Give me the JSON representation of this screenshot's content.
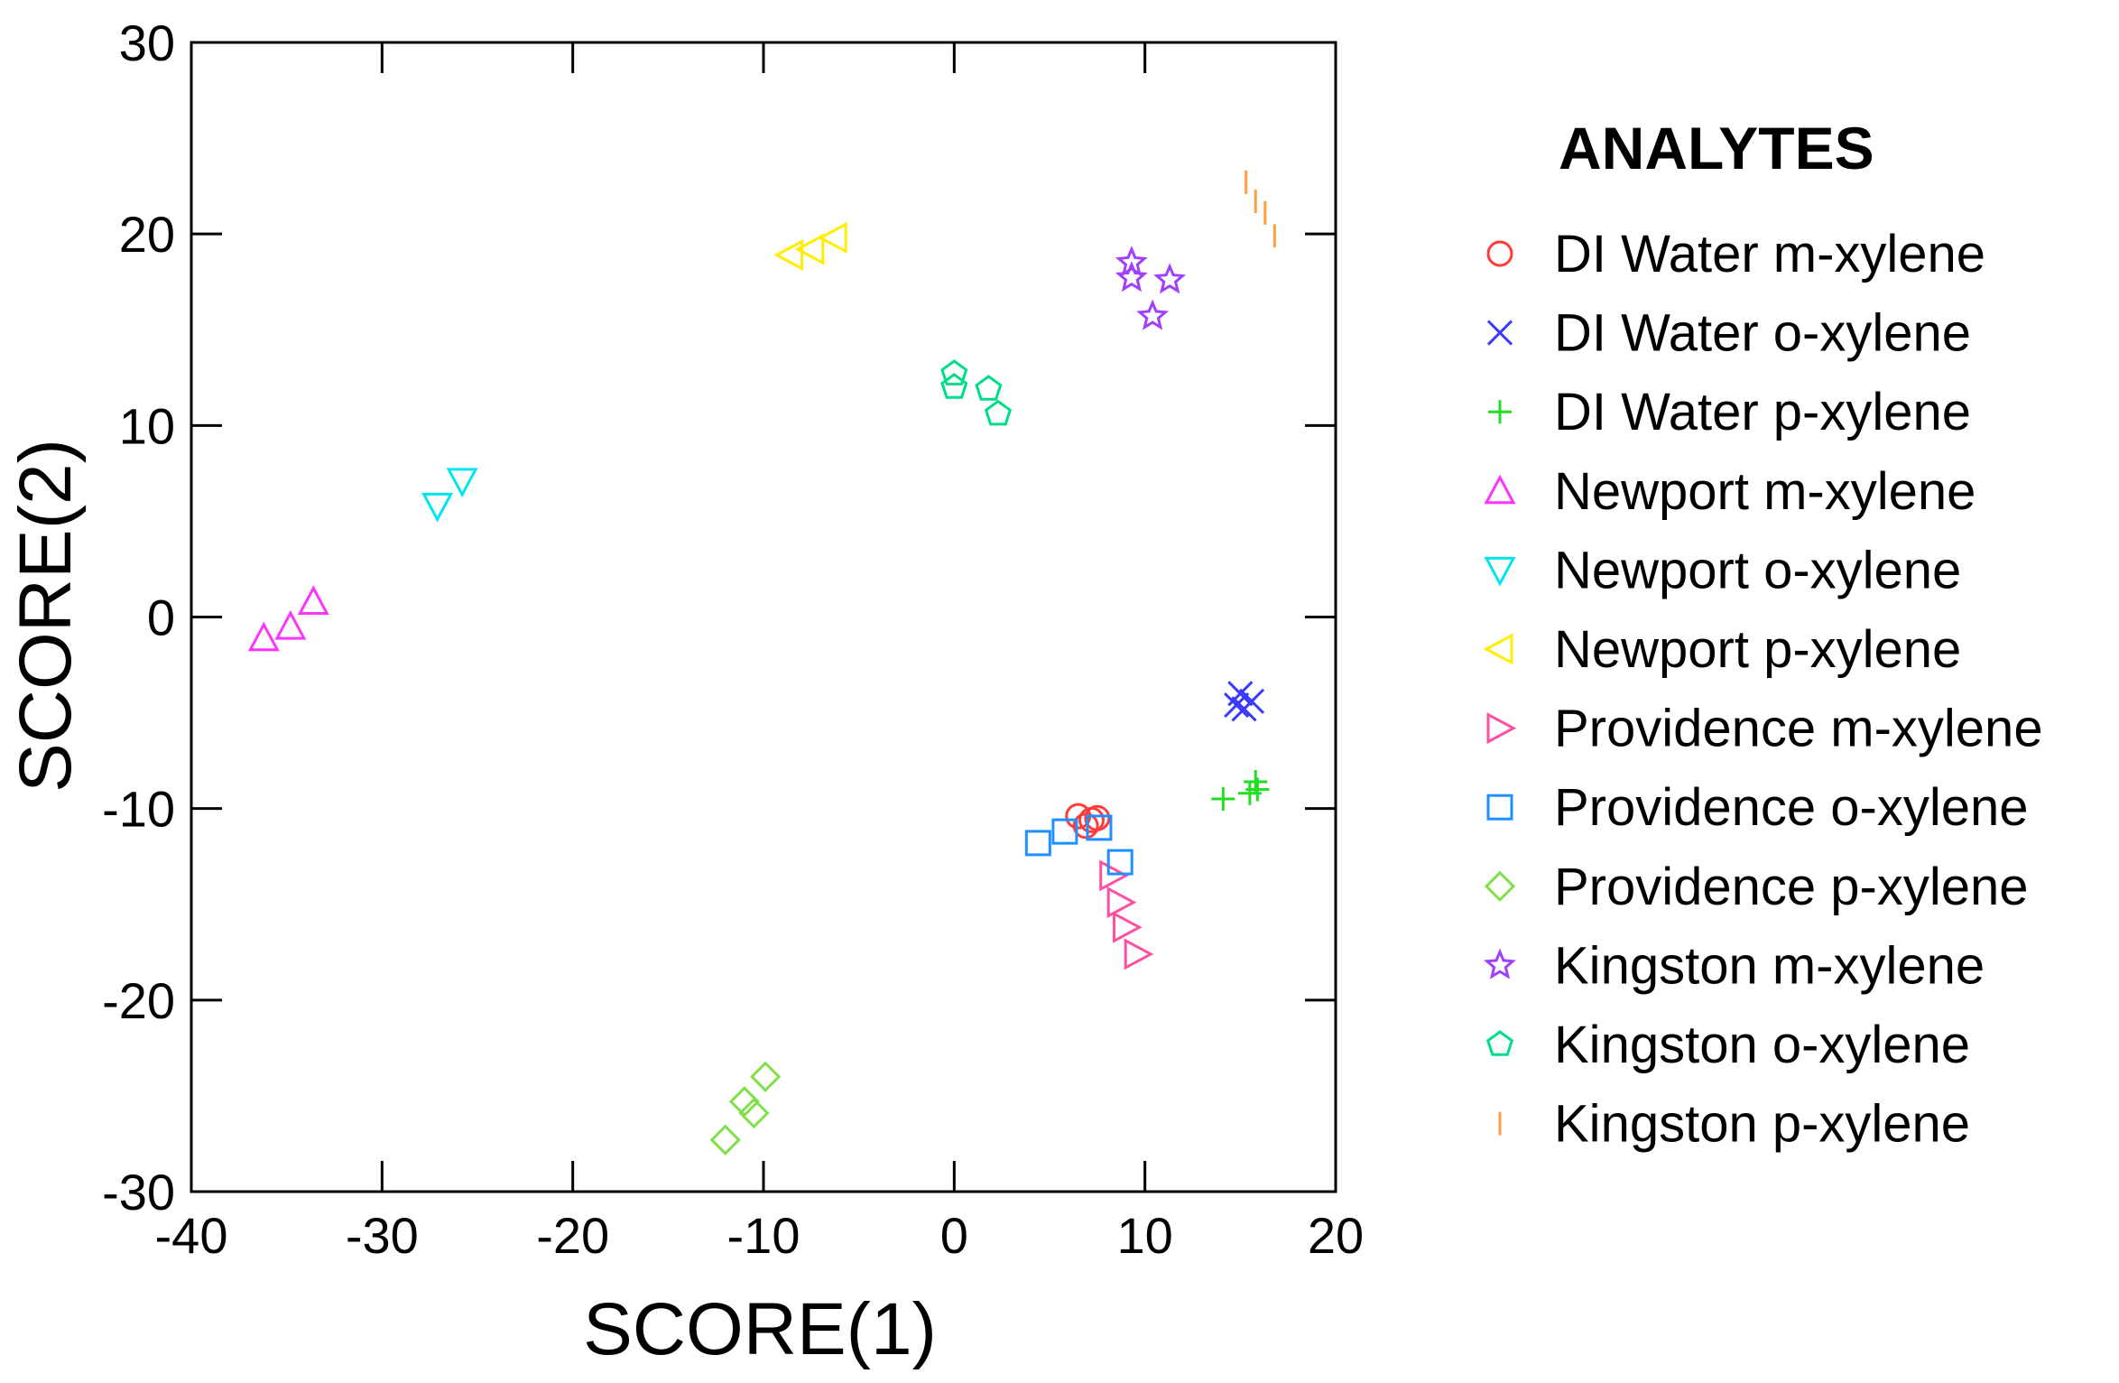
{
  "chart_data": {
    "type": "scatter",
    "title": "",
    "xlabel": "SCORE(1)",
    "ylabel": "SCORE(2)",
    "xlim": [
      -40,
      20
    ],
    "ylim": [
      -30,
      30
    ],
    "xticks": [
      -40,
      -30,
      -20,
      -10,
      0,
      10,
      20
    ],
    "yticks": [
      -30,
      -20,
      -10,
      0,
      10,
      20,
      30
    ],
    "grid": false,
    "legend_title": "ANALYTES",
    "legend_position": "right",
    "series": [
      {
        "name": "DI Water m-xylene",
        "marker": "circle",
        "color": "#ff3b3b",
        "points": [
          [
            6.5,
            -10.4
          ],
          [
            7.2,
            -10.6
          ],
          [
            6.9,
            -10.9
          ],
          [
            7.5,
            -10.5
          ]
        ]
      },
      {
        "name": "DI Water o-xylene",
        "marker": "x",
        "color": "#3a3aff",
        "points": [
          [
            15.0,
            -4.0
          ],
          [
            15.6,
            -4.4
          ],
          [
            15.2,
            -4.8
          ],
          [
            14.8,
            -4.6
          ]
        ]
      },
      {
        "name": "DI Water p-xylene",
        "marker": "plus",
        "color": "#22dd22",
        "points": [
          [
            14.1,
            -9.5
          ],
          [
            15.5,
            -9.2
          ],
          [
            15.9,
            -9.0
          ],
          [
            15.8,
            -8.6
          ]
        ]
      },
      {
        "name": "Newport m-xylene",
        "marker": "triangle-up",
        "color": "#ff33ff",
        "points": [
          [
            -36.2,
            -1.1
          ],
          [
            -34.8,
            -0.5
          ],
          [
            -33.6,
            0.8
          ]
        ]
      },
      {
        "name": "Newport o-xylene",
        "marker": "triangle-down",
        "color": "#00e5ee",
        "points": [
          [
            -27.1,
            5.8
          ],
          [
            -25.8,
            7.1
          ]
        ]
      },
      {
        "name": "Newport p-xylene",
        "marker": "triangle-left",
        "color": "#ffee00",
        "points": [
          [
            -8.6,
            18.9
          ],
          [
            -7.5,
            19.2
          ],
          [
            -6.3,
            19.8
          ]
        ]
      },
      {
        "name": "Providence m-xylene",
        "marker": "triangle-right",
        "color": "#ff4fa0",
        "points": [
          [
            8.3,
            -13.5
          ],
          [
            8.7,
            -14.9
          ],
          [
            9.0,
            -16.2
          ],
          [
            9.6,
            -17.6
          ]
        ]
      },
      {
        "name": "Providence o-xylene",
        "marker": "square",
        "color": "#1e90ff",
        "points": [
          [
            4.4,
            -11.8
          ],
          [
            5.8,
            -11.2
          ],
          [
            7.6,
            -11.0
          ],
          [
            8.7,
            -12.8
          ]
        ]
      },
      {
        "name": "Providence p-xylene",
        "marker": "diamond",
        "color": "#80e04a",
        "points": [
          [
            -12.0,
            -27.3
          ],
          [
            -11.0,
            -25.3
          ],
          [
            -10.5,
            -25.9
          ],
          [
            -9.9,
            -24.0
          ]
        ]
      },
      {
        "name": "Kingston m-xylene",
        "marker": "star",
        "color": "#a040ff",
        "points": [
          [
            9.3,
            18.5
          ],
          [
            9.3,
            17.7
          ],
          [
            11.3,
            17.6
          ],
          [
            10.4,
            15.7
          ]
        ]
      },
      {
        "name": "Kingston o-xylene",
        "marker": "pentagon",
        "color": "#00dd88",
        "points": [
          [
            0.0,
            12.7
          ],
          [
            0.0,
            12.0
          ],
          [
            1.8,
            11.9
          ],
          [
            2.3,
            10.6
          ]
        ]
      },
      {
        "name": "Kingston p-xylene",
        "marker": "vline",
        "color": "#ffa040",
        "points": [
          [
            15.3,
            22.7
          ],
          [
            15.8,
            21.7
          ],
          [
            16.3,
            21.1
          ],
          [
            16.8,
            19.9
          ]
        ]
      }
    ]
  }
}
